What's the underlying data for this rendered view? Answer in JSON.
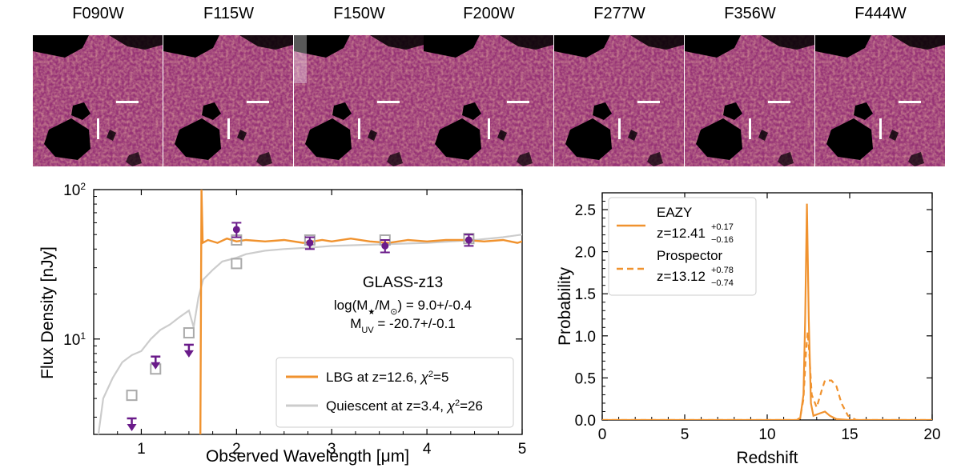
{
  "cutouts": {
    "bands": [
      "F090W",
      "F115W",
      "F150W",
      "F200W",
      "F277W",
      "F356W",
      "F444W"
    ]
  },
  "chart_data": [
    {
      "type": "line",
      "title": "",
      "xlabel": "Observed Wavelength [μm]",
      "ylabel": "Flux Density [nJy]",
      "xlim": [
        0.5,
        5
      ],
      "ylim": [
        2.3,
        100
      ],
      "yscale": "log",
      "xticks": [
        1,
        2,
        3,
        4,
        5
      ],
      "yticks": [
        {
          "value": 10,
          "base": "10",
          "exp": "1"
        },
        {
          "value": 100,
          "base": "10",
          "exp": "2"
        }
      ],
      "annotation": {
        "name": "GLASS-z13",
        "mass_prefix": "log(M",
        "mass_star": "★",
        "mass_mid": "/M",
        "mass_sun": "⊙",
        "mass_suffix": ") = 9.0+/-0.4",
        "muv_prefix": "M",
        "muv_sub": "UV",
        "muv_suffix": " = -20.7+/-0.1"
      },
      "legend": {
        "placement": "bottom-right",
        "entries": [
          {
            "label_prefix": "LBG at z=12.6, ",
            "chi": "χ",
            "sup": "2",
            "label_suffix": "=5",
            "color": "#f0922e"
          },
          {
            "label_prefix": "Quiescent at z=3.4, ",
            "chi": "χ",
            "sup": "2",
            "label_suffix": "=26",
            "color": "#cccccc"
          }
        ]
      },
      "series": [
        {
          "name": "LBG at z=12.6",
          "points": [
            [
              1.62,
              2.3
            ],
            [
              1.632,
              100
            ],
            [
              1.645,
              44
            ],
            [
              1.7,
              46
            ],
            [
              1.8,
              44
            ],
            [
              1.9,
              47
            ],
            [
              2.0,
              45
            ],
            [
              2.1,
              46
            ],
            [
              2.3,
              45
            ],
            [
              2.5,
              46
            ],
            [
              2.7,
              44
            ],
            [
              2.9,
              46
            ],
            [
              3.0,
              45
            ],
            [
              3.2,
              47
            ],
            [
              3.4,
              45
            ],
            [
              3.6,
              44
            ],
            [
              3.8,
              46
            ],
            [
              4.0,
              45
            ],
            [
              4.2,
              46
            ],
            [
              4.4,
              46
            ],
            [
              4.6,
              45
            ],
            [
              4.8,
              46
            ],
            [
              4.95,
              44
            ],
            [
              5.0,
              45
            ]
          ]
        },
        {
          "name": "Quiescent at z=3.4",
          "points": [
            [
              0.55,
              2.3
            ],
            [
              0.6,
              4.0
            ],
            [
              0.7,
              5.5
            ],
            [
              0.8,
              7.0
            ],
            [
              0.9,
              7.8
            ],
            [
              1.0,
              8.3
            ],
            [
              1.1,
              10
            ],
            [
              1.2,
              11.5
            ],
            [
              1.3,
              12.5
            ],
            [
              1.4,
              14
            ],
            [
              1.5,
              15.5
            ],
            [
              1.55,
              12
            ],
            [
              1.6,
              19
            ],
            [
              1.65,
              25
            ],
            [
              1.75,
              29
            ],
            [
              1.85,
              33
            ],
            [
              2.0,
              35
            ],
            [
              2.1,
              37
            ],
            [
              2.3,
              39
            ],
            [
              2.5,
              40
            ],
            [
              2.8,
              41
            ],
            [
              3.0,
              42
            ],
            [
              3.5,
              43
            ],
            [
              4.0,
              44
            ],
            [
              4.5,
              46
            ],
            [
              4.8,
              48
            ],
            [
              5.0,
              50
            ]
          ]
        }
      ],
      "model_photometry": [
        {
          "x": 0.9,
          "y": 4.2
        },
        {
          "x": 1.15,
          "y": 6.3
        },
        {
          "x": 1.5,
          "y": 11
        },
        {
          "x": 2.0,
          "y": 32
        },
        {
          "x": 2.0,
          "y": 46
        },
        {
          "x": 2.77,
          "y": 46
        },
        {
          "x": 3.56,
          "y": 46
        },
        {
          "x": 4.44,
          "y": 47
        }
      ],
      "observed": [
        {
          "x": 2.0,
          "y": 54,
          "yerr": 6
        },
        {
          "x": 2.77,
          "y": 44,
          "yerr": 4
        },
        {
          "x": 3.56,
          "y": 42,
          "yerr": 4
        },
        {
          "x": 4.44,
          "y": 46,
          "yerr": 4
        }
      ],
      "upper_limits": [
        {
          "x": 0.9,
          "y": 2.7
        },
        {
          "x": 1.15,
          "y": 7.0
        },
        {
          "x": 1.5,
          "y": 8.4
        }
      ]
    },
    {
      "type": "line",
      "title": "",
      "xlabel": "Redshift",
      "ylabel": "Probability",
      "xlim": [
        0,
        20
      ],
      "ylim": [
        0,
        2.7
      ],
      "xticks": [
        0,
        5,
        10,
        15,
        20
      ],
      "yticks": [
        0.0,
        0.5,
        1.0,
        1.5,
        2.0,
        2.5
      ],
      "ytick_labels": [
        "0.0",
        "0.5",
        "1.0",
        "1.5",
        "2.0",
        "2.5"
      ],
      "legend": {
        "placement": "top-left",
        "entries": [
          {
            "name": "EAZY",
            "z_text": "z=12.41",
            "sup": "+0.17",
            "sub": "−0.16",
            "style": "solid"
          },
          {
            "name": "Prospector",
            "z_text": "z=13.12",
            "sup": "+0.78",
            "sub": "−0.74",
            "style": "dashed"
          }
        ]
      },
      "series": [
        {
          "name": "EAZY",
          "style": "solid",
          "points": [
            [
              0,
              0
            ],
            [
              11.8,
              0
            ],
            [
              12.0,
              0.02
            ],
            [
              12.2,
              0.3
            ],
            [
              12.3,
              1.2
            ],
            [
              12.41,
              2.57
            ],
            [
              12.52,
              1.2
            ],
            [
              12.65,
              0.2
            ],
            [
              12.8,
              0.05
            ],
            [
              13.2,
              0.08
            ],
            [
              13.5,
              0.1
            ],
            [
              13.8,
              0.05
            ],
            [
              14.2,
              0.01
            ],
            [
              15,
              0
            ],
            [
              20,
              0
            ]
          ]
        },
        {
          "name": "Prospector",
          "style": "dashed",
          "points": [
            [
              0,
              0
            ],
            [
              11.8,
              0
            ],
            [
              12.0,
              0.03
            ],
            [
              12.2,
              0.25
            ],
            [
              12.35,
              0.8
            ],
            [
              12.45,
              1.05
            ],
            [
              12.55,
              0.8
            ],
            [
              12.7,
              0.3
            ],
            [
              13.0,
              0.15
            ],
            [
              13.3,
              0.35
            ],
            [
              13.5,
              0.47
            ],
            [
              13.9,
              0.47
            ],
            [
              14.2,
              0.4
            ],
            [
              14.5,
              0.2
            ],
            [
              14.9,
              0.05
            ],
            [
              15.4,
              0
            ],
            [
              20,
              0
            ]
          ]
        }
      ]
    }
  ]
}
